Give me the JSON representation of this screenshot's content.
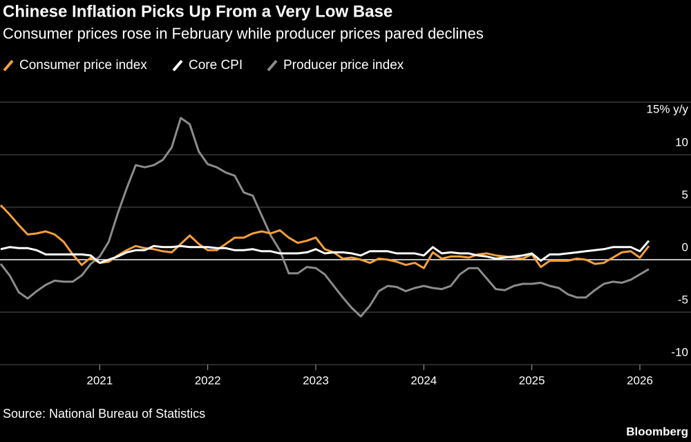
{
  "chart_data": {
    "type": "line",
    "title": "Chinese Inflation Picks Up From a Very Low Base",
    "subtitle": "Consumer prices rose in February while producer prices pared declines",
    "source": "Source: National Bureau of Statistics",
    "brand": "Bloomberg",
    "categories": [
      null,
      null,
      null,
      null,
      null,
      null,
      null,
      null,
      null,
      null,
      null,
      "2021",
      null,
      null,
      null,
      null,
      null,
      null,
      null,
      null,
      null,
      null,
      null,
      "2022",
      null,
      null,
      null,
      null,
      null,
      null,
      null,
      null,
      null,
      null,
      null,
      "2023",
      null,
      null,
      null,
      null,
      null,
      null,
      null,
      null,
      null,
      null,
      null,
      "2024",
      null,
      null,
      null,
      null,
      null,
      null,
      null,
      null,
      null,
      null,
      null,
      "2025",
      null,
      null,
      null,
      null,
      null,
      null,
      null,
      null,
      null,
      null,
      null,
      "2026",
      null
    ],
    "series": [
      {
        "name": "Consumer price index",
        "color": "#f5a03c",
        "values": [
          5.2,
          4.3,
          3.3,
          2.4,
          2.5,
          2.7,
          2.4,
          1.7,
          0.5,
          -0.5,
          0.2,
          -0.3,
          -0.2,
          0.4,
          0.9,
          1.3,
          1.1,
          1.0,
          0.8,
          0.7,
          1.5,
          2.3,
          1.5,
          0.9,
          0.9,
          1.5,
          2.1,
          2.1,
          2.5,
          2.7,
          2.5,
          2.8,
          2.1,
          1.6,
          1.8,
          2.1,
          1.0,
          0.7,
          0.1,
          0.2,
          0.0,
          -0.3,
          0.1,
          0.0,
          -0.2,
          -0.5,
          -0.3,
          -0.8,
          0.7,
          0.1,
          0.3,
          0.3,
          0.2,
          0.5,
          0.6,
          0.4,
          0.3,
          0.2,
          0.1,
          0.5,
          -0.7,
          -0.1,
          -0.1,
          -0.1,
          0.1,
          0.0,
          -0.4,
          -0.3,
          0.2,
          0.7,
          0.8,
          0.2,
          1.3
        ]
      },
      {
        "name": "Core CPI",
        "color": "#ffffff",
        "values": [
          1.0,
          1.2,
          1.1,
          1.1,
          0.9,
          0.5,
          0.5,
          0.5,
          0.5,
          0.5,
          0.4,
          -0.3,
          0.0,
          0.3,
          0.7,
          0.9,
          0.9,
          1.3,
          1.2,
          1.2,
          1.3,
          1.2,
          1.2,
          1.2,
          1.1,
          1.1,
          0.9,
          0.9,
          1.0,
          0.8,
          0.8,
          0.6,
          0.6,
          0.6,
          0.7,
          1.0,
          0.6,
          0.7,
          0.7,
          0.6,
          0.4,
          0.8,
          0.8,
          0.8,
          0.6,
          0.6,
          0.6,
          0.4,
          1.2,
          0.6,
          0.7,
          0.6,
          0.6,
          0.4,
          0.3,
          0.1,
          0.2,
          0.3,
          0.4,
          0.6,
          -0.1,
          0.5,
          0.5,
          0.6,
          0.7,
          0.8,
          0.9,
          1.0,
          1.2,
          1.2,
          1.2,
          0.8,
          1.8
        ]
      },
      {
        "name": "Producer price index",
        "color": "#8c8c8c",
        "values": [
          -0.4,
          -1.5,
          -3.1,
          -3.7,
          -3.0,
          -2.4,
          -2.0,
          -2.1,
          -2.1,
          -1.5,
          -0.4,
          0.3,
          1.7,
          4.4,
          6.8,
          9.0,
          8.8,
          9.0,
          9.5,
          10.7,
          13.5,
          12.9,
          10.3,
          9.1,
          8.8,
          8.3,
          8.0,
          6.4,
          6.1,
          4.2,
          2.3,
          0.9,
          -1.3,
          -1.3,
          -0.7,
          -0.8,
          -1.4,
          -2.5,
          -3.6,
          -4.6,
          -5.4,
          -4.4,
          -3.0,
          -2.5,
          -2.6,
          -3.0,
          -2.7,
          -2.5,
          -2.7,
          -2.8,
          -2.5,
          -1.4,
          -0.8,
          -0.8,
          -1.8,
          -2.8,
          -2.9,
          -2.5,
          -2.3,
          -2.3,
          -2.2,
          -2.5,
          -2.7,
          -3.3,
          -3.6,
          -3.6,
          -2.9,
          -2.3,
          -2.1,
          -2.2,
          -1.9,
          -1.4,
          -0.9
        ]
      }
    ],
    "ylim": [
      -10,
      15
    ],
    "yticks": [
      -10,
      -5,
      0,
      5,
      10,
      {
        "value": 15,
        "label": "15% y/y"
      }
    ],
    "grid": true
  }
}
